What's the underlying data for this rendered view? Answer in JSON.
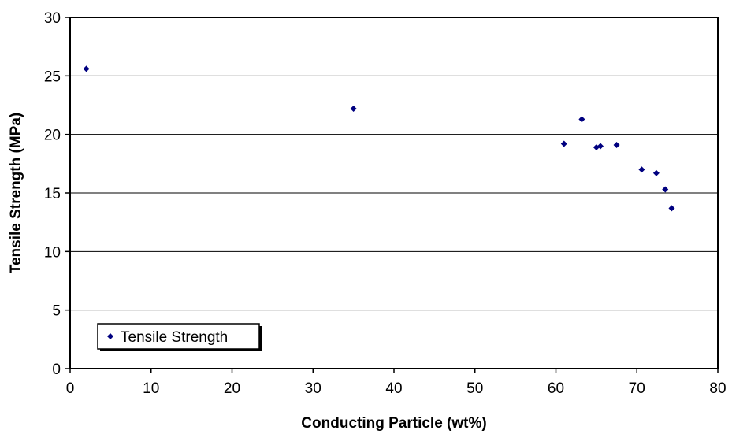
{
  "chart_data": {
    "type": "scatter",
    "title": "",
    "xlabel": "Conducting Particle (wt%)",
    "ylabel": "Tensile Strength (MPa)",
    "xlim": [
      0,
      80
    ],
    "ylim": [
      0,
      30
    ],
    "xticks": [
      0,
      10,
      20,
      30,
      40,
      50,
      60,
      70,
      80
    ],
    "yticks": [
      0,
      5,
      10,
      15,
      20,
      25,
      30
    ],
    "grid": {
      "horizontal": true,
      "vertical": false
    },
    "legend": {
      "position": "bottom-left",
      "visible": true
    },
    "series": [
      {
        "name": "Tensile Strength",
        "color": "#000080",
        "marker": "diamond",
        "points": [
          {
            "x": 2,
            "y": 25.6
          },
          {
            "x": 35,
            "y": 22.2
          },
          {
            "x": 61,
            "y": 19.2
          },
          {
            "x": 63.2,
            "y": 21.3
          },
          {
            "x": 65,
            "y": 18.9
          },
          {
            "x": 65.5,
            "y": 19.0
          },
          {
            "x": 67.5,
            "y": 19.1
          },
          {
            "x": 70.6,
            "y": 17.0
          },
          {
            "x": 72.4,
            "y": 16.7
          },
          {
            "x": 73.5,
            "y": 15.3
          },
          {
            "x": 74.3,
            "y": 13.7
          }
        ]
      }
    ]
  }
}
